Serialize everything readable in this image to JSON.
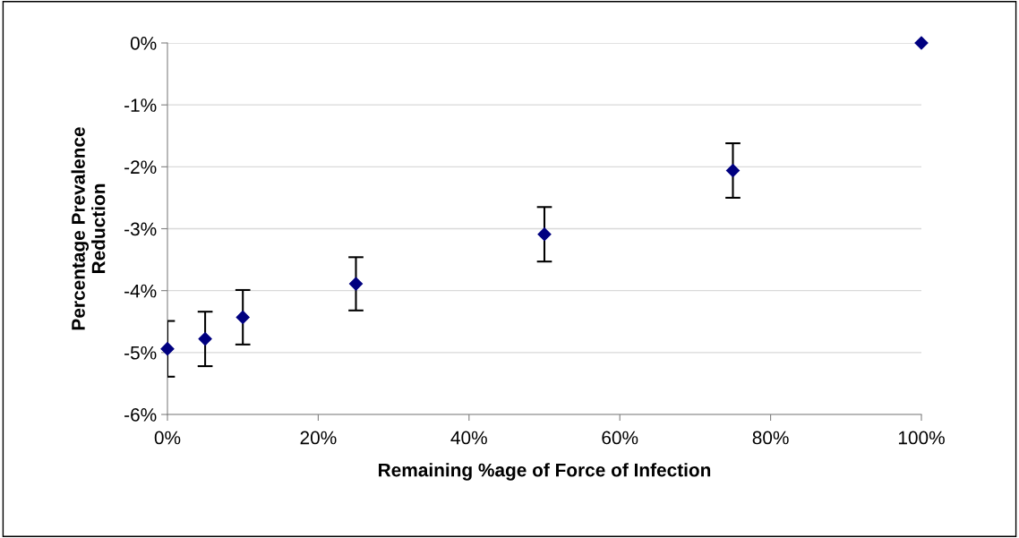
{
  "chart_data": {
    "type": "scatter",
    "xlabel": "Remaining %age of Force of Infection",
    "ylabel": "Percentage Prevalence\nReduction",
    "x": [
      0,
      5,
      10,
      25,
      50,
      75,
      100
    ],
    "series": [
      {
        "color": "#000080",
        "values": [
          -4.94,
          -4.78,
          -4.43,
          -3.89,
          -3.09,
          -2.06,
          0
        ],
        "errors": [
          0.45,
          0.44,
          0.44,
          0.43,
          0.44,
          0.44,
          null
        ]
      }
    ],
    "marker": "diamond",
    "grid": "y",
    "xlim": [
      0,
      100
    ],
    "xticks": [
      {
        "value": 0,
        "label": "0%"
      },
      {
        "value": 20,
        "label": "20%"
      },
      {
        "value": 40,
        "label": "40%"
      },
      {
        "value": 60,
        "label": "60%"
      },
      {
        "value": 80,
        "label": "80%"
      },
      {
        "value": 100,
        "label": "100%"
      }
    ],
    "ylim": [
      -6,
      0
    ],
    "yticks": [
      {
        "value": -6,
        "label": "-6%"
      },
      {
        "value": -5,
        "label": "-5%"
      },
      {
        "value": -4,
        "label": "-4%"
      },
      {
        "value": -3,
        "label": "-3%"
      },
      {
        "value": -2,
        "label": "-2%"
      },
      {
        "value": -1,
        "label": "-1%"
      },
      {
        "value": 0,
        "label": "0%"
      }
    ]
  }
}
